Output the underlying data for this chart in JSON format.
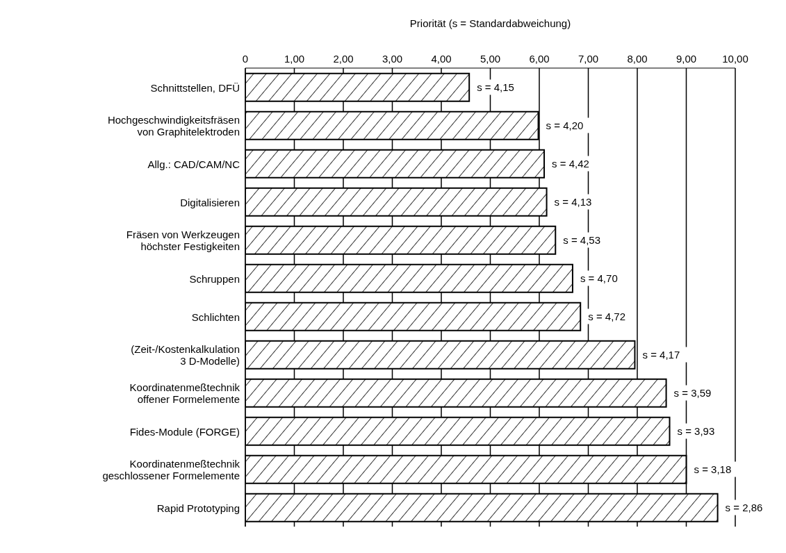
{
  "chart_data": {
    "type": "bar",
    "orientation": "horizontal",
    "xlabel": "Priorität (s = Standardabweichung)",
    "categories": [
      "Schnittstellen, DFÜ",
      "Hochgeschwindigkeitsfräsen\nvon Graphitelektroden",
      "Allg.: CAD/CAM/NC",
      "Digitalisieren",
      "Fräsen von Werkzeugen\nhöchster Festigkeiten",
      "Schruppen",
      "Schlichten",
      "(Zeit-/Kostenkalkulation\n3 D-Modelle)",
      "Koordinatenmeßtechnik\noffener Formelemente",
      "Fides-Module (FORGE)",
      "Koordinatenmeßtechnik\ngeschlossener Formelemente",
      "Rapid Prototyping"
    ],
    "values": [
      4.57,
      5.98,
      6.1,
      6.15,
      6.33,
      6.68,
      6.84,
      7.95,
      8.59,
      8.66,
      9.0,
      9.64
    ],
    "color": "#000000",
    "xlim": [
      0,
      10
    ],
    "xticks": [
      {
        "value": 0,
        "label": "0"
      },
      {
        "value": 1,
        "label": "1,00"
      },
      {
        "value": 2,
        "label": "2,00"
      },
      {
        "value": 3,
        "label": "3,00"
      },
      {
        "value": 4,
        "label": "4,00"
      },
      {
        "value": 5,
        "label": "5,00"
      },
      {
        "value": 6,
        "label": "6,00"
      },
      {
        "value": 7,
        "label": "7,00"
      },
      {
        "value": 8,
        "label": "8,00"
      },
      {
        "value": 9,
        "label": "9,00"
      },
      {
        "value": 10,
        "label": "10,00"
      }
    ],
    "grid": "x",
    "annotations": [
      {
        "text": "s = 4,15",
        "x": 4.57,
        "y": "Schnittstellen, DFÜ"
      },
      {
        "text": "s = 4,20",
        "x": 5.98,
        "y": "Hochgeschwindigkeitsfräsen\nvon Graphitelektroden"
      },
      {
        "text": "s = 4,42",
        "x": 6.1,
        "y": "Allg.: CAD/CAM/NC"
      },
      {
        "text": "s = 4,13",
        "x": 6.15,
        "y": "Digitalisieren"
      },
      {
        "text": "s = 4,53",
        "x": 6.33,
        "y": "Fräsen von Werkzeugen\nhöchster Festigkeiten"
      },
      {
        "text": "s = 4,70",
        "x": 6.68,
        "y": "Schruppen"
      },
      {
        "text": "s = 4,72",
        "x": 6.84,
        "y": "Schlichten"
      },
      {
        "text": "s = 4,17",
        "x": 7.95,
        "y": "(Zeit-/Kostenkalkulation\n3 D-Modelle)"
      },
      {
        "text": "s = 3,59",
        "x": 8.59,
        "y": "Koordinatenmeßtechnik\noffener Formelemente"
      },
      {
        "text": "s = 3,93",
        "x": 8.66,
        "y": "Fides-Module (FORGE)"
      },
      {
        "text": "s = 3,18",
        "x": 9.0,
        "y": "Koordinatenmeßtechnik\ngeschlossener Formelemente"
      },
      {
        "text": "s = 2,86",
        "x": 9.64,
        "y": "Rapid Prototyping"
      }
    ]
  }
}
